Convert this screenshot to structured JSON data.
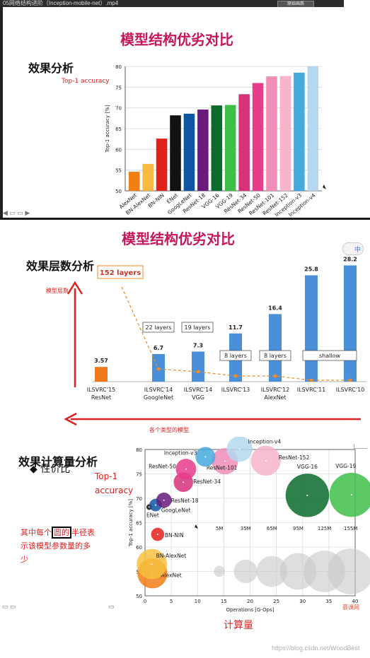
{
  "video_bar": {
    "title": "05网络结构进阶（Inception-mobile-net）.mp4",
    "dropdown": "原始画质"
  },
  "panel1": {
    "title": "模型结构优劣对比",
    "heading": "效果分析",
    "annotation": "Top-1 accuracy"
  },
  "panel2": {
    "title": "模型结构优劣对比",
    "heading": "效果层数分析",
    "y_annotation": "模型层数",
    "x_annotation": "各个类型的模型"
  },
  "panel3": {
    "heading": "效果计算量分析",
    "bullet": "性价比",
    "annotation_line1": "Top-1",
    "annotation_line2": "accuracy",
    "note_line1": "其中每个",
    "note_boxed": "圆的",
    "note_line1_rest": "半径表",
    "note_line2": "示该模型参数量的多",
    "note_line3": "少",
    "x_annotation": "计算量",
    "logo": "慕课网"
  },
  "watermark": "https://blog.csdn.net/WoodBest",
  "colors": {
    "title": "#c2185b",
    "annotation": "#e02020",
    "bar_blue": "#4a90d9",
    "bar_orange": "#f07818"
  },
  "chart_data": [
    {
      "type": "bar",
      "ylabel": "Top-1 accuracy [%]",
      "ylim": [
        50,
        80
      ],
      "yticks": [
        50,
        55,
        60,
        65,
        70,
        75,
        80
      ],
      "grid": true,
      "categories": [
        "AlexNet",
        "BN-AlexNet",
        "BN-NIN",
        "ENet",
        "GoogLeNet",
        "ResNet-18",
        "VGG-16",
        "VGG-19",
        "ResNet-34",
        "ResNet-50",
        "ResNet-101",
        "ResNet-152",
        "Inception-v3",
        "Inception-v4"
      ],
      "values": [
        54.6,
        56.5,
        62.6,
        68.2,
        68.6,
        69.6,
        70.6,
        70.7,
        73.3,
        76.0,
        77.6,
        77.7,
        78.5,
        80.1
      ],
      "colors": [
        "#f07f16",
        "#f7b93f",
        "#e3211c",
        "#111111",
        "#1055a4",
        "#6a1a7a",
        "#0b6b2d",
        "#3fbf4a",
        "#d6317b",
        "#e73c8c",
        "#f08db7",
        "#f7b4cd",
        "#46a9dd",
        "#b5d8f0"
      ]
    },
    {
      "type": "bar",
      "categories": [
        {
          "line1": "ILSVRC'15",
          "line2": "ResNet",
          "value_label": "3.57",
          "layers": "152 layers",
          "highlight": true
        },
        {
          "line1": "ILSVRC'14",
          "line2": "GoogleNet",
          "value_label": "6.7",
          "layers": "22 layers",
          "highlight": false
        },
        {
          "line1": "ILSVRC'14",
          "line2": "VGG",
          "value_label": "7.3",
          "layers": "19 layers",
          "highlight": false
        },
        {
          "line1": "ILSVRC'13",
          "line2": "",
          "value_label": "11.7",
          "layers": "8 layers",
          "highlight": false
        },
        {
          "line1": "ILSVRC'12",
          "line2": "AlexNet",
          "value_label": "16.4",
          "layers": "8 layers",
          "highlight": false
        },
        {
          "line1": "ILSVRC'11",
          "line2": "",
          "value_label": "25.8",
          "layers": "shallow",
          "highlight": false
        },
        {
          "line1": "ILSVRC'10",
          "line2": "",
          "value_label": "28.2",
          "layers": "",
          "highlight": false
        }
      ],
      "values": [
        3.57,
        6.7,
        7.3,
        11.7,
        16.4,
        25.8,
        28.2
      ],
      "ylim": [
        0,
        30
      ]
    },
    {
      "type": "scatter",
      "xlabel": "Operations [G-Ops]",
      "ylabel": "Top-1 accuracy [%]",
      "xlim": [
        0,
        40
      ],
      "ylim": [
        50,
        80
      ],
      "xticks": [
        0,
        5,
        10,
        15,
        20,
        25,
        30,
        35,
        40
      ],
      "yticks": [
        50,
        55,
        60,
        65,
        70,
        75,
        80
      ],
      "grid": true,
      "points": [
        {
          "name": "AlexNet",
          "x": 1.4,
          "y": 54.6,
          "params_m": 61,
          "color": "#f07f16"
        },
        {
          "name": "BN-AlexNet",
          "x": 1.3,
          "y": 56.5,
          "params_m": 62,
          "color": "#f7c040"
        },
        {
          "name": "BN-NIN",
          "x": 2.4,
          "y": 62.6,
          "params_m": 8,
          "color": "#e3211c"
        },
        {
          "name": "ENet",
          "x": 0.8,
          "y": 68.2,
          "params_m": 0.4,
          "color": "#111111"
        },
        {
          "name": "GoogLeNet",
          "x": 2.0,
          "y": 68.6,
          "params_m": 7,
          "color": "#1055a4"
        },
        {
          "name": "ResNet-18",
          "x": 3.6,
          "y": 69.6,
          "params_m": 12,
          "color": "#6a1a7a"
        },
        {
          "name": "ResNet-34",
          "x": 7.3,
          "y": 73.3,
          "params_m": 22,
          "color": "#d6317b"
        },
        {
          "name": "ResNet-50",
          "x": 7.8,
          "y": 76.0,
          "params_m": 25,
          "color": "#e73c8c"
        },
        {
          "name": "ResNet-101",
          "x": 15.2,
          "y": 77.6,
          "params_m": 45,
          "color": "#f08db7"
        },
        {
          "name": "ResNet-152",
          "x": 23.0,
          "y": 77.7,
          "params_m": 60,
          "color": "#f7b4cd"
        },
        {
          "name": "Inception-v3",
          "x": 11.5,
          "y": 78.5,
          "params_m": 23,
          "color": "#46a9dd"
        },
        {
          "name": "Inception-v4",
          "x": 18.0,
          "y": 80.1,
          "params_m": 43,
          "color": "#b5d8f0"
        },
        {
          "name": "VGG-16",
          "x": 30.9,
          "y": 70.6,
          "params_m": 138,
          "color": "#0b6b2d"
        },
        {
          "name": "VGG-19",
          "x": 39.3,
          "y": 70.7,
          "params_m": 143,
          "color": "#3fbf4a"
        }
      ],
      "size_legend": [
        {
          "label": "5M",
          "x": 15.5
        },
        {
          "label": "35M",
          "x": 20.5
        },
        {
          "label": "65M",
          "x": 25.5
        },
        {
          "label": "95M",
          "x": 30.5
        },
        {
          "label": "125M",
          "x": 35.5
        },
        {
          "label": "155M",
          "x": 40.5
        }
      ],
      "size_legend_y": 55
    }
  ]
}
